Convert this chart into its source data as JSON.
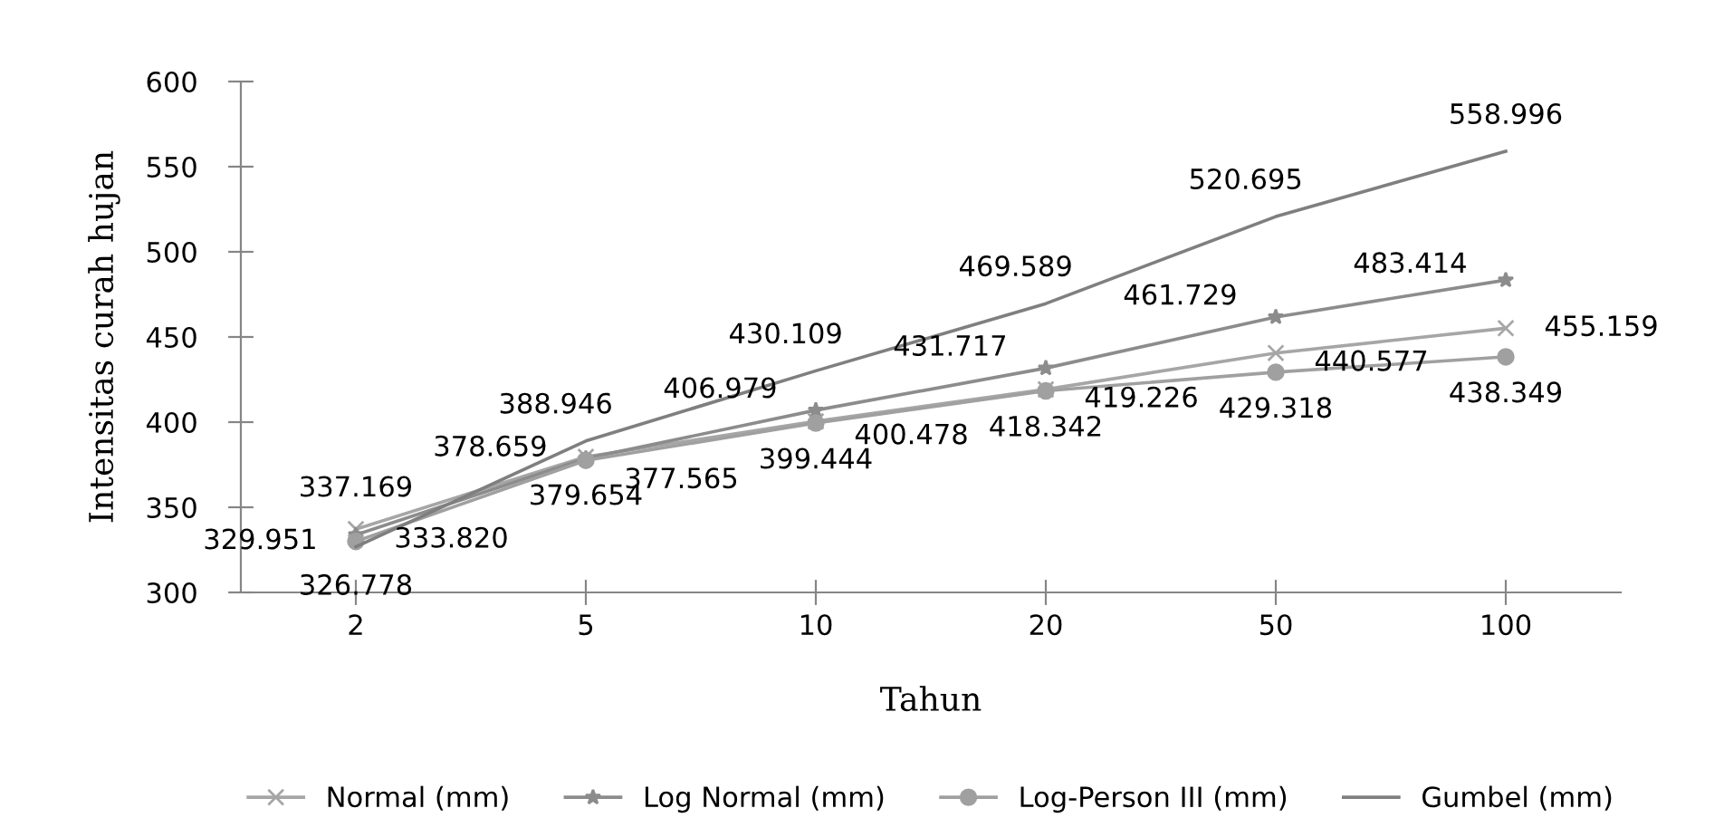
{
  "chart_data": {
    "type": "line",
    "xlabel": "Tahun",
    "ylabel": "Intensitas curah hujan",
    "categories": [
      "2",
      "5",
      "10",
      "20",
      "50",
      "100"
    ],
    "series": [
      {
        "name": "Normal (mm)",
        "color": "#a6a6a6",
        "marker": "cross",
        "values": [
          337.169,
          379.654,
          400.478,
          419.226,
          440.577,
          455.159
        ],
        "value_labels": [
          "337.169",
          "379.654",
          "400.478",
          "419.226",
          "440.577",
          "455.159"
        ]
      },
      {
        "name": "Log Normal (mm)",
        "color": "#8c8c8c",
        "marker": "star",
        "values": [
          333.82,
          378.659,
          406.979,
          431.717,
          461.729,
          483.414
        ],
        "value_labels": [
          "333.820",
          "378.659",
          "406.979",
          "431.717",
          "461.729",
          "483.414"
        ]
      },
      {
        "name": "Log-Person III (mm)",
        "color": "#a0a0a0",
        "marker": "circle",
        "values": [
          329.951,
          377.565,
          399.444,
          418.342,
          429.318,
          438.349
        ],
        "value_labels": [
          "329.951",
          "377.565",
          "399.444",
          "418.342",
          "429.318",
          "438.349"
        ]
      },
      {
        "name": "Gumbel (mm)",
        "color": "#7f7f7f",
        "marker": "none",
        "values": [
          326.778,
          388.946,
          430.109,
          469.589,
          520.695,
          558.996
        ],
        "value_labels": [
          "326.778",
          "388.946",
          "430.109",
          "469.589",
          "520.695",
          "558.996"
        ]
      }
    ],
    "ylim": [
      300,
      600
    ],
    "yticks": [
      300,
      350,
      400,
      450,
      500,
      550,
      600
    ],
    "grid": false,
    "legend": "bottom"
  }
}
